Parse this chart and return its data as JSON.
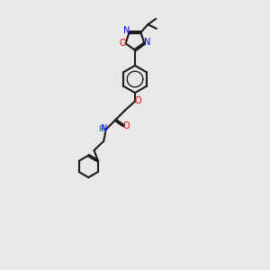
{
  "bg_color": "#e8e8e8",
  "bond_color": "#1a1a1a",
  "N_color": "#0000ee",
  "O_color": "#ee0000",
  "H_color": "#007070",
  "lw": 1.5,
  "dbo": 0.035,
  "xlim": [
    0,
    10
  ],
  "ylim": [
    0,
    14
  ]
}
